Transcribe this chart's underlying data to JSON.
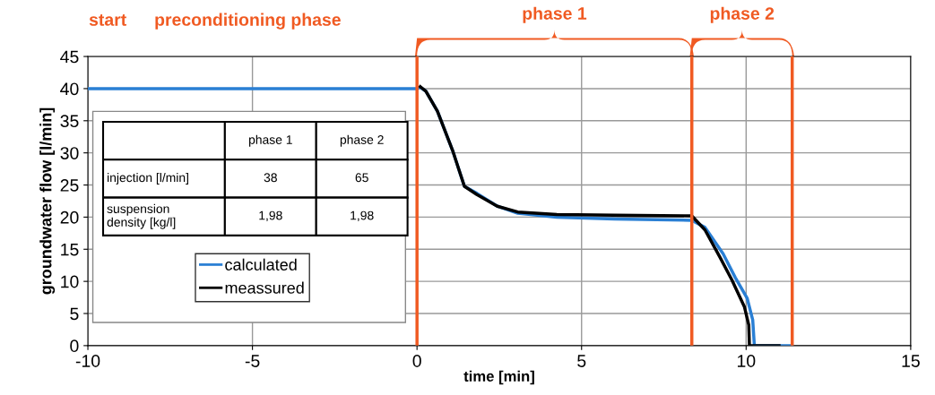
{
  "chart_data": {
    "type": "line",
    "xlabel": "time [min]",
    "ylabel": "groundwater flow [l/min]",
    "xlim": [
      -10,
      15
    ],
    "xticks": [
      -10,
      -5,
      0,
      5,
      10,
      15
    ],
    "ylim": [
      0,
      45
    ],
    "yticks": [
      0,
      5,
      10,
      15,
      20,
      25,
      30,
      35,
      40,
      45
    ],
    "grid": true,
    "legend": "left",
    "marker": "none",
    "line_style": "solid",
    "series": [
      {
        "name": "calculated",
        "color": "#2a7fd4",
        "x": [
          -10,
          0,
          0.1,
          0.27,
          0.62,
          1.08,
          1.44,
          1.82,
          2.44,
          3.06,
          4.25,
          6,
          8.35,
          8.75,
          9.3,
          9.67,
          10.03,
          10.2,
          10.25,
          11.38
        ],
        "values": [
          40,
          40,
          40.2,
          39.6,
          36.5,
          30.4,
          24.8,
          23.7,
          21.7,
          20.6,
          20,
          19.7,
          19.5,
          18.4,
          14.3,
          10.6,
          7.4,
          4,
          0,
          0
        ]
      },
      {
        "name": "meassured",
        "color": "#000000",
        "x": [
          0.1,
          0.27,
          0.62,
          1.08,
          1.44,
          1.82,
          2.44,
          3.06,
          4.25,
          6,
          8.35,
          8.75,
          9.2,
          9.57,
          9.95,
          10.08,
          10.1,
          11
        ],
        "values": [
          40.3,
          39.6,
          36.5,
          30.4,
          24.8,
          23.5,
          21.7,
          20.8,
          20.4,
          20.3,
          20.2,
          18,
          13.8,
          10.2,
          6,
          3.2,
          0,
          0
        ]
      }
    ],
    "ref_lines": [
      {
        "axis": "x",
        "value": 0,
        "color": "#f05a22"
      },
      {
        "axis": "x",
        "value": 8.35,
        "color": "#f05a22"
      },
      {
        "axis": "x",
        "value": 11.4,
        "color": "#f05a22"
      }
    ],
    "annotations": [
      "start",
      "preconditioning phase",
      "phase 1",
      "phase 2",
      "phase 1",
      "phase 2",
      "injection [l/min]",
      "38",
      "65",
      "suspension\ndensity [kg/l]",
      "1,98",
      "1,98"
    ]
  }
}
